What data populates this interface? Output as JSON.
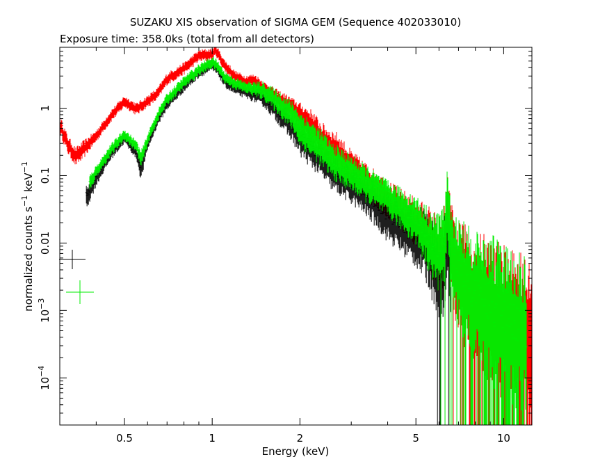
{
  "chart_data": {
    "type": "line",
    "title": "SUZAKU XIS observation of SIGMA GEM (Sequence 402033010)",
    "subtitle": "Exposure time: 358.0ks (total from all detectors)",
    "xlabel": "Energy (keV)",
    "ylabel_base": "normalized counts s",
    "ylabel_exp1": "−1",
    "ylabel_mid": " keV",
    "ylabel_exp2": "−1",
    "x_scale": "log",
    "y_scale": "log",
    "xlim": [
      0.3,
      12.5
    ],
    "ylim": [
      2e-05,
      8
    ],
    "x_ticks": [
      {
        "v": 0.5,
        "label": "0.5"
      },
      {
        "v": 1,
        "label": "1"
      },
      {
        "v": 2,
        "label": "2"
      },
      {
        "v": 5,
        "label": "5"
      },
      {
        "v": 10,
        "label": "10"
      }
    ],
    "y_ticks": [
      {
        "v": 1,
        "label": "1"
      },
      {
        "v": 0.1,
        "label": "0.1"
      },
      {
        "v": 0.01,
        "label": "0.01"
      },
      {
        "v": 0.001,
        "base": "10",
        "exp": "−3"
      },
      {
        "v": 0.0001,
        "base": "10",
        "exp": "−4"
      }
    ],
    "grid": false,
    "series": [
      {
        "color": "#ff0000",
        "x": [
          0.3,
          0.32,
          0.34,
          0.36,
          0.4,
          0.45,
          0.5,
          0.55,
          0.6,
          0.65,
          0.7,
          0.8,
          0.9,
          1.0,
          1.03,
          1.1,
          1.2,
          1.3,
          1.4,
          1.5,
          1.7,
          1.85,
          2.0,
          2.2,
          2.4,
          2.7,
          3.0,
          3.5,
          4.0,
          4.5,
          5.0,
          5.5,
          5.8,
          6.2,
          6.4,
          6.7,
          7.0,
          7.5,
          8.0,
          9.0,
          10.0,
          11.0,
          12.5
        ],
        "y": [
          0.6,
          0.3,
          0.2,
          0.25,
          0.4,
          0.8,
          1.3,
          1.0,
          1.3,
          1.7,
          2.8,
          4.0,
          6.2,
          6.5,
          7.5,
          4.5,
          3.0,
          2.6,
          2.7,
          2.1,
          1.4,
          1.15,
          0.85,
          0.6,
          0.35,
          0.25,
          0.14,
          0.08,
          0.05,
          0.033,
          0.023,
          0.015,
          0.01,
          0.007,
          0.03,
          0.007,
          0.004,
          0.003,
          0.002,
          0.0015,
          0.001,
          0.0008,
          0.0005
        ],
        "noise": [
          0.15,
          0.15,
          0.15,
          0.15,
          0.1,
          0.1,
          0.1,
          0.1,
          0.1,
          0.1,
          0.1,
          0.1,
          0.1,
          0.1,
          0.1,
          0.1,
          0.1,
          0.1,
          0.1,
          0.1,
          0.15,
          0.15,
          0.2,
          0.25,
          0.3,
          0.3,
          0.3,
          0.3,
          0.3,
          0.35,
          0.4,
          0.5,
          0.6,
          0.7,
          0.7,
          0.8,
          0.9,
          1.0,
          1.1,
          1.2,
          1.3,
          1.3,
          1.3
        ]
      },
      {
        "color": "#000000",
        "x": [
          0.37,
          0.4,
          0.45,
          0.5,
          0.55,
          0.57,
          0.6,
          0.65,
          0.7,
          0.8,
          0.9,
          1.0,
          1.05,
          1.1,
          1.2,
          1.3,
          1.5,
          1.7,
          1.9,
          2.0,
          2.3,
          2.6,
          3.0,
          3.5,
          4.0,
          4.5,
          5.0,
          5.5,
          5.8,
          6.2,
          6.4,
          6.6
        ],
        "y": [
          0.05,
          0.1,
          0.22,
          0.38,
          0.22,
          0.13,
          0.3,
          0.7,
          1.2,
          2.2,
          3.6,
          4.5,
          3.8,
          2.6,
          2.0,
          1.8,
          1.5,
          0.9,
          0.55,
          0.4,
          0.22,
          0.12,
          0.08,
          0.05,
          0.028,
          0.02,
          0.015,
          0.01,
          0.006,
          0.004,
          0.02,
          0.003
        ],
        "noise": [
          0.2,
          0.15,
          0.1,
          0.1,
          0.1,
          0.2,
          0.1,
          0.1,
          0.1,
          0.1,
          0.1,
          0.1,
          0.1,
          0.1,
          0.1,
          0.1,
          0.15,
          0.2,
          0.25,
          0.3,
          0.3,
          0.3,
          0.3,
          0.35,
          0.4,
          0.45,
          0.5,
          0.6,
          0.7,
          0.8,
          0.8,
          0.9
        ]
      },
      {
        "color": "#00ee00",
        "x": [
          0.38,
          0.4,
          0.45,
          0.5,
          0.55,
          0.57,
          0.6,
          0.65,
          0.7,
          0.8,
          0.9,
          1.0,
          1.05,
          1.1,
          1.2,
          1.3,
          1.5,
          1.7,
          1.9,
          2.0,
          2.3,
          2.6,
          3.0,
          3.5,
          4.0,
          4.5,
          5.0,
          5.5,
          5.8,
          6.2,
          6.4,
          6.7,
          7.0,
          7.5,
          8.0,
          9.0,
          10.0,
          11.0,
          12.0
        ],
        "y": [
          0.08,
          0.12,
          0.25,
          0.42,
          0.28,
          0.18,
          0.35,
          0.8,
          1.4,
          2.5,
          3.8,
          5.0,
          4.2,
          3.0,
          2.4,
          2.1,
          1.9,
          1.25,
          0.8,
          0.55,
          0.32,
          0.18,
          0.12,
          0.075,
          0.05,
          0.035,
          0.025,
          0.014,
          0.01,
          0.009,
          0.035,
          0.008,
          0.005,
          0.003,
          0.002,
          0.0015,
          0.001,
          0.0008,
          0.0006
        ],
        "noise": [
          0.15,
          0.1,
          0.1,
          0.1,
          0.1,
          0.15,
          0.1,
          0.1,
          0.1,
          0.1,
          0.1,
          0.1,
          0.1,
          0.1,
          0.1,
          0.1,
          0.15,
          0.2,
          0.25,
          0.3,
          0.3,
          0.3,
          0.3,
          0.3,
          0.3,
          0.35,
          0.4,
          0.5,
          0.6,
          0.7,
          0.7,
          0.8,
          0.9,
          1.0,
          1.1,
          1.2,
          1.3,
          1.3,
          1.3
        ]
      }
    ],
    "legend_markers": [
      {
        "color": "#000000"
      },
      {
        "color": "#00ee00"
      }
    ]
  }
}
